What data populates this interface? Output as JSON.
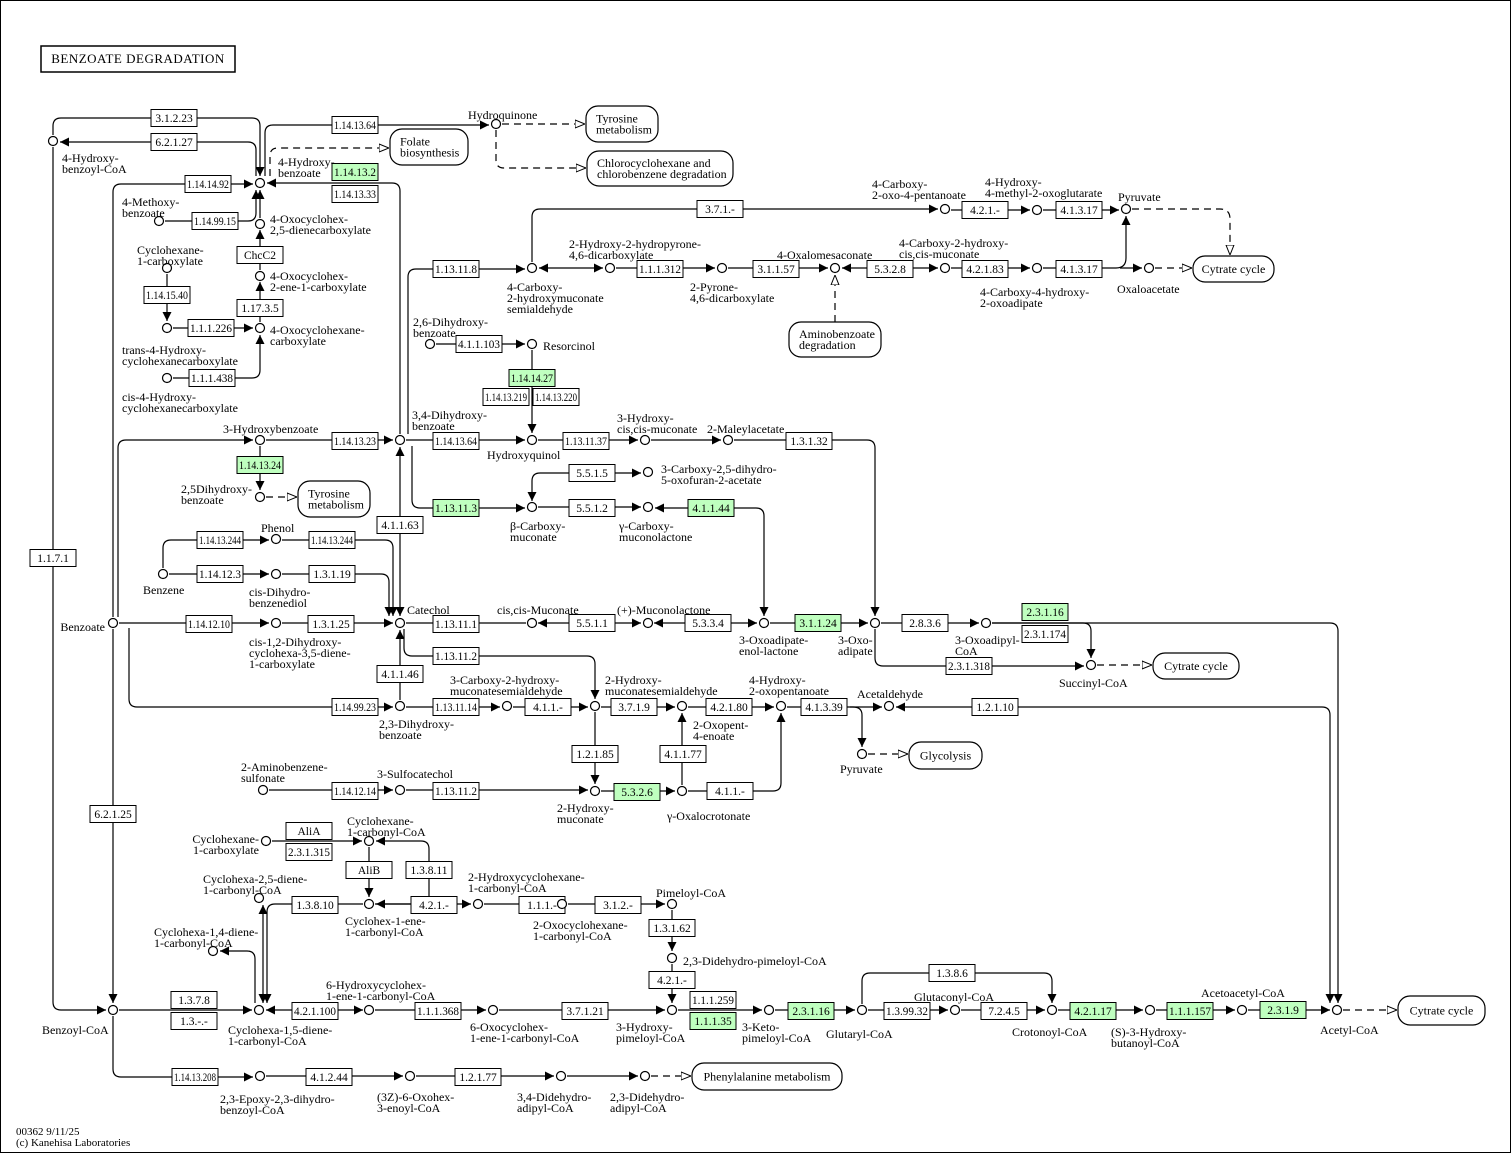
{
  "title": "BENZOATE DEGRADATION",
  "footer": {
    "map_id": "00362 9/11/25",
    "copyright": "(c) Kanehisa Laboratories"
  },
  "colors": {
    "highlight": "#bfffbf",
    "line": "#000000"
  },
  "compounds": [
    {
      "label": [
        "4-Hydroxy-",
        "benzoyl-CoA"
      ]
    },
    {
      "label": [
        "4-Hydroxy-",
        "benzoate"
      ]
    },
    {
      "label": [
        "Hydroquinone"
      ]
    },
    {
      "label": [
        "4-Methoxy-",
        "benzoate"
      ]
    },
    {
      "label": [
        "4-Oxocyclohex-",
        "2,5-dienecarboxylate"
      ]
    },
    {
      "label": [
        "Cyclohexane-",
        "1-carboxylate"
      ]
    },
    {
      "label": [
        "4-Oxocyclohex-",
        "2-ene-1-carboxylate"
      ]
    },
    {
      "label": [
        "trans-4-Hydroxy-",
        "cyclohexanecarboxylate"
      ]
    },
    {
      "label": [
        "4-Oxocyclohexane-",
        "carboxylate"
      ]
    },
    {
      "label": [
        "cis-4-Hydroxy-",
        "cyclohexanecarboxylate"
      ]
    },
    {
      "label": [
        "4-Carboxy-",
        "2-oxo-4-pentanoate"
      ]
    },
    {
      "label": [
        "4-Hydroxy-",
        "4-methyl-2-oxoglutarate"
      ]
    },
    {
      "label": [
        "Pyruvate"
      ]
    },
    {
      "label": [
        "4-Carboxy-",
        "2-hydroxymuconate",
        "semialdehyde"
      ]
    },
    {
      "label": [
        "2-Hydroxy-2-hydropyrone-",
        "4,6-dicarboxylate"
      ]
    },
    {
      "label": [
        "2-Pyrone-",
        "4,6-dicarboxylate"
      ]
    },
    {
      "label": [
        "4-Oxalomesaconate"
      ]
    },
    {
      "label": [
        "4-Carboxy-2-hydroxy-",
        "cis,cis-muconate"
      ]
    },
    {
      "label": [
        "4-Carboxy-4-hydroxy-",
        "2-oxoadipate"
      ]
    },
    {
      "label": [
        "Oxaloacetate"
      ]
    },
    {
      "label": [
        "2,6-Dihydroxy-",
        "benzoate"
      ]
    },
    {
      "label": [
        "Resorcinol"
      ]
    },
    {
      "label": [
        "3,4-Dihydroxy-",
        "benzoate"
      ]
    },
    {
      "label": [
        "Hydroxyquinol"
      ]
    },
    {
      "label": [
        "3-Hydroxy-",
        "cis,cis-muconate"
      ]
    },
    {
      "label": [
        "2-Maleylacetate"
      ]
    },
    {
      "label": [
        "3-Hydroxybenzoate"
      ]
    },
    {
      "label": [
        "3-Carboxy-2,5-dihydro-",
        "5-oxofuran-2-acetate"
      ]
    },
    {
      "label": [
        "2,5Dihydroxy-",
        "benzoate"
      ]
    },
    {
      "label": [
        "β-Carboxy-",
        "muconate"
      ]
    },
    {
      "label": [
        "γ-Carboxy-",
        "muconolactone"
      ]
    },
    {
      "label": [
        "Phenol"
      ]
    },
    {
      "label": [
        "Benzene"
      ]
    },
    {
      "label": [
        "cis-Dihydro-",
        "benzenediol"
      ]
    },
    {
      "label": [
        "Benzoate"
      ]
    },
    {
      "label": [
        "cis-1,2-Dihydroxy-",
        "cyclohexa-3,5-diene-",
        "1-carboxylate"
      ]
    },
    {
      "label": [
        "Catechol"
      ]
    },
    {
      "label": [
        "cis,cis-Muconate"
      ]
    },
    {
      "label": [
        "(+)-Muconolactone"
      ]
    },
    {
      "label": [
        "3-Oxoadipate-",
        "enol-lactone"
      ]
    },
    {
      "label": [
        "3-Oxo-",
        "adipate"
      ]
    },
    {
      "label": [
        "3-Oxoadipyl-",
        "CoA"
      ]
    },
    {
      "label": [
        "Succinyl-CoA"
      ]
    },
    {
      "label": [
        "2,3-Dihydroxy-",
        "benzoate"
      ]
    },
    {
      "label": [
        "3-Carboxy-2-hydroxy-",
        "muconatesemialdehyde"
      ]
    },
    {
      "label": [
        "2-Hydroxy-",
        "muconatesemialdehyde"
      ]
    },
    {
      "label": [
        "2-Oxopent-",
        "4-enoate"
      ]
    },
    {
      "label": [
        "4-Hydroxy-",
        "2-oxopentanoate"
      ]
    },
    {
      "label": [
        "Acetaldehyde"
      ]
    },
    {
      "label": [
        "Pyruvate"
      ]
    },
    {
      "label": [
        "2-Aminobenzene-",
        "sulfonate"
      ]
    },
    {
      "label": [
        "3-Sulfocatechol"
      ]
    },
    {
      "label": [
        "2-Hydroxy-",
        "muconate"
      ]
    },
    {
      "label": [
        "γ-Oxalocrotonate"
      ]
    },
    {
      "label": [
        "Cyclohexane-",
        "1-carboxylate"
      ]
    },
    {
      "label": [
        "Cyclohexane-",
        "1-carbonyl-CoA"
      ]
    },
    {
      "label": [
        "Cyclohexa-2,5-diene-",
        "1-carbonyl-CoA"
      ]
    },
    {
      "label": [
        "Cyclohex-1-ene-",
        "1-carbonyl-CoA"
      ]
    },
    {
      "label": [
        "2-Hydroxycyclohexane-",
        "1-carbonyl-CoA"
      ]
    },
    {
      "label": [
        "2-Oxocyclohexane-",
        "1-carbonyl-CoA"
      ]
    },
    {
      "label": [
        "Pimeloyl-CoA"
      ]
    },
    {
      "label": [
        "2,3-Didehydro-pimeloyl-CoA"
      ]
    },
    {
      "label": [
        "Cyclohexa-1,4-diene-",
        "1-carbonyl-CoA"
      ]
    },
    {
      "label": [
        "Benzoyl-CoA"
      ]
    },
    {
      "label": [
        "Cyclohexa-1,5-diene-",
        "1-carbonyl-CoA"
      ]
    },
    {
      "label": [
        "6-Hydroxycyclohex-",
        "1-ene-1-carbonyl-CoA"
      ]
    },
    {
      "label": [
        "6-Oxocyclohex-",
        "1-ene-1-carbonyl-CoA"
      ]
    },
    {
      "label": [
        "3-Hydroxy-",
        "pimeloyl-CoA"
      ]
    },
    {
      "label": [
        "3-Keto-",
        "pimeloyl-CoA"
      ]
    },
    {
      "label": [
        "Glutaryl-CoA"
      ]
    },
    {
      "label": [
        "Glutaconyl-CoA"
      ]
    },
    {
      "label": [
        "Crotonoyl-CoA"
      ]
    },
    {
      "label": [
        "(S)-3-Hydroxy-",
        "butanoyl-CoA"
      ]
    },
    {
      "label": [
        "Acetoacetyl-CoA"
      ]
    },
    {
      "label": [
        "Acetyl-CoA"
      ]
    },
    {
      "label": [
        "2,3-Epoxy-2,3-dihydro-",
        "benzoyl-CoA"
      ]
    },
    {
      "label": [
        "(3Z)-6-Oxohex-",
        "3-enoyl-CoA"
      ]
    },
    {
      "label": [
        "3,4-Didehydro-",
        "adipyl-CoA"
      ]
    },
    {
      "label": [
        "2,3-Didehydro-",
        "adipyl-CoA"
      ]
    }
  ],
  "enzymes": [
    {
      "ec": "3.1.2.23",
      "hl": false
    },
    {
      "ec": "6.2.1.27",
      "hl": false
    },
    {
      "ec": "1.14.13.64",
      "hl": false
    },
    {
      "ec": "1.14.13.2",
      "hl": true
    },
    {
      "ec": "1.14.13.33",
      "hl": false
    },
    {
      "ec": "1.14.14.92",
      "hl": false
    },
    {
      "ec": "1.14.99.15",
      "hl": false
    },
    {
      "ec": "ChcC2",
      "hl": false
    },
    {
      "ec": "1.14.15.40",
      "hl": false
    },
    {
      "ec": "1.17.3.5",
      "hl": false
    },
    {
      "ec": "1.1.1.226",
      "hl": false
    },
    {
      "ec": "1.1.1.438",
      "hl": false
    },
    {
      "ec": "1.13.11.8",
      "hl": false
    },
    {
      "ec": "3.7.1.-",
      "hl": false
    },
    {
      "ec": "4.2.1.-",
      "hl": false
    },
    {
      "ec": "4.1.3.17",
      "hl": false
    },
    {
      "ec": "1.1.1.312",
      "hl": false
    },
    {
      "ec": "3.1.1.57",
      "hl": false
    },
    {
      "ec": "5.3.2.8",
      "hl": false
    },
    {
      "ec": "4.2.1.83",
      "hl": false
    },
    {
      "ec": "4.1.3.17",
      "hl": false
    },
    {
      "ec": "4.1.1.103",
      "hl": false
    },
    {
      "ec": "1.14.14.27",
      "hl": true
    },
    {
      "ec": "1.14.13.219",
      "hl": false
    },
    {
      "ec": "1.14.13.220",
      "hl": false
    },
    {
      "ec": "1.14.13.23",
      "hl": false
    },
    {
      "ec": "1.14.13.64",
      "hl": false
    },
    {
      "ec": "1.13.11.37",
      "hl": false
    },
    {
      "ec": "1.3.1.32",
      "hl": false
    },
    {
      "ec": "1.14.13.24",
      "hl": true
    },
    {
      "ec": "5.5.1.5",
      "hl": false
    },
    {
      "ec": "1.13.11.3",
      "hl": true
    },
    {
      "ec": "5.5.1.2",
      "hl": false
    },
    {
      "ec": "4.1.1.44",
      "hl": true
    },
    {
      "ec": "4.1.1.63",
      "hl": false
    },
    {
      "ec": "1.14.13.244",
      "hl": false
    },
    {
      "ec": "1.14.13.244",
      "hl": false
    },
    {
      "ec": "1.14.12.3",
      "hl": false
    },
    {
      "ec": "1.3.1.19",
      "hl": false
    },
    {
      "ec": "1.1.7.1",
      "hl": false
    },
    {
      "ec": "1.14.12.10",
      "hl": false
    },
    {
      "ec": "1.3.1.25",
      "hl": false
    },
    {
      "ec": "1.13.11.1",
      "hl": false
    },
    {
      "ec": "5.5.1.1",
      "hl": false
    },
    {
      "ec": "5.3.3.4",
      "hl": false
    },
    {
      "ec": "3.1.1.24",
      "hl": true
    },
    {
      "ec": "2.8.3.6",
      "hl": false
    },
    {
      "ec": "2.3.1.16",
      "hl": true
    },
    {
      "ec": "2.3.1.174",
      "hl": false
    },
    {
      "ec": "2.3.1.318",
      "hl": false
    },
    {
      "ec": "1.13.11.2",
      "hl": false
    },
    {
      "ec": "4.1.1.46",
      "hl": false
    },
    {
      "ec": "1.14.99.23",
      "hl": false
    },
    {
      "ec": "1.13.11.14",
      "hl": false
    },
    {
      "ec": "4.1.1.-",
      "hl": false
    },
    {
      "ec": "3.7.1.9",
      "hl": false
    },
    {
      "ec": "4.2.1.80",
      "hl": false
    },
    {
      "ec": "4.1.3.39",
      "hl": false
    },
    {
      "ec": "1.2.1.10",
      "hl": false
    },
    {
      "ec": "1.2.1.85",
      "hl": false
    },
    {
      "ec": "4.1.1.77",
      "hl": false
    },
    {
      "ec": "1.14.12.14",
      "hl": false
    },
    {
      "ec": "1.13.11.2",
      "hl": false
    },
    {
      "ec": "5.3.2.6",
      "hl": true
    },
    {
      "ec": "4.1.1.-",
      "hl": false
    },
    {
      "ec": "6.2.1.25",
      "hl": false
    },
    {
      "ec": "AliA",
      "hl": false
    },
    {
      "ec": "2.3.1.315",
      "hl": false
    },
    {
      "ec": "AliB",
      "hl": false
    },
    {
      "ec": "1.3.8.11",
      "hl": false
    },
    {
      "ec": "1.3.8.10",
      "hl": false
    },
    {
      "ec": "4.2.1.-",
      "hl": false
    },
    {
      "ec": "1.1.1.-",
      "hl": false
    },
    {
      "ec": "3.1.2.-",
      "hl": false
    },
    {
      "ec": "1.3.1.62",
      "hl": false
    },
    {
      "ec": "4.2.1.-",
      "hl": false
    },
    {
      "ec": "1.3.7.8",
      "hl": false
    },
    {
      "ec": "1.3.-.-",
      "hl": false
    },
    {
      "ec": "4.2.1.100",
      "hl": false
    },
    {
      "ec": "1.1.1.368",
      "hl": false
    },
    {
      "ec": "3.7.1.21",
      "hl": false
    },
    {
      "ec": "1.1.1.259",
      "hl": false
    },
    {
      "ec": "1.1.1.35",
      "hl": true
    },
    {
      "ec": "2.3.1.16",
      "hl": true
    },
    {
      "ec": "1.3.99.32",
      "hl": false
    },
    {
      "ec": "1.3.8.6",
      "hl": false
    },
    {
      "ec": "7.2.4.5",
      "hl": false
    },
    {
      "ec": "4.2.1.17",
      "hl": true
    },
    {
      "ec": "1.1.1.157",
      "hl": true
    },
    {
      "ec": "2.3.1.9",
      "hl": true
    },
    {
      "ec": "1.14.13.208",
      "hl": false
    },
    {
      "ec": "4.1.2.44",
      "hl": false
    },
    {
      "ec": "1.2.1.77",
      "hl": false
    }
  ],
  "maps": [
    {
      "label": [
        "Tyrosine",
        "metabolism"
      ]
    },
    {
      "label": [
        "Folate",
        "biosynthesis"
      ]
    },
    {
      "label": [
        "Chlorocyclohexane and",
        "chlorobenzene degradation"
      ]
    },
    {
      "label": [
        "Cytrate cycle"
      ]
    },
    {
      "label": [
        "Aminobenzoate",
        "degradation"
      ]
    },
    {
      "label": [
        "Tyrosine",
        "metabolism"
      ]
    },
    {
      "label": [
        "Cytrate cycle"
      ]
    },
    {
      "label": [
        "Glycolysis"
      ]
    },
    {
      "label": [
        "Cytrate cycle"
      ]
    },
    {
      "label": [
        "Phenylalanine metabolism"
      ]
    }
  ]
}
